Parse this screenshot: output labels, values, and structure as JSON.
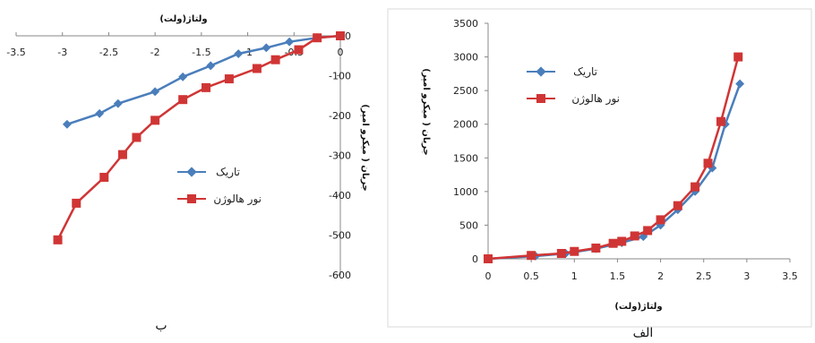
{
  "chart_data": [
    {
      "panel": "ب",
      "type": "line",
      "xlabel": "ولتاژ(ولت)",
      "ylabel": "جریان ( میکرو امپر)",
      "xlim": [
        -3.5,
        0
      ],
      "ylim": [
        -600,
        0
      ],
      "xticks": [
        -3.5,
        -3,
        -2.5,
        -2,
        -1.5,
        -1,
        -0.5,
        0
      ],
      "yticks": [
        -600,
        -500,
        -400,
        -300,
        -200,
        -100,
        0
      ],
      "xtick_labels": [
        "-3.5",
        "-3",
        "-2.5",
        "-2",
        "-1.5",
        "-1",
        "-0.5",
        "0"
      ],
      "ytick_labels": [
        "-600",
        "-500",
        "-400",
        "-300",
        "-200",
        "-100",
        "0"
      ],
      "legend_position": "bottom-center",
      "grid": false,
      "series": [
        {
          "name": "تاریک",
          "color": "#4a7ebb",
          "marker": "diamond",
          "x": [
            -2.95,
            -2.6,
            -2.4,
            -2.0,
            -1.7,
            -1.4,
            -1.1,
            -0.8,
            -0.55,
            -0.25,
            0.0
          ],
          "y": [
            -222,
            -195,
            -170,
            -140,
            -103,
            -75,
            -45,
            -30,
            -15,
            -5,
            0
          ]
        },
        {
          "name": "نور هالوژن",
          "color": "#d03535",
          "marker": "square",
          "x": [
            -3.05,
            -2.85,
            -2.55,
            -2.35,
            -2.2,
            -2.0,
            -1.7,
            -1.45,
            -1.2,
            -0.9,
            -0.7,
            -0.45,
            -0.25,
            0.0
          ],
          "y": [
            -512,
            -420,
            -355,
            -298,
            -255,
            -212,
            -160,
            -130,
            -108,
            -82,
            -60,
            -35,
            -5,
            0
          ]
        }
      ]
    },
    {
      "panel": "الف",
      "type": "line",
      "xlabel": "ولتاژ(ولت)",
      "ylabel": "جریان ( میکرو امپر)",
      "xlim": [
        0,
        3.5
      ],
      "ylim": [
        0,
        3500
      ],
      "xticks": [
        0,
        0.5,
        1,
        1.5,
        2,
        2.5,
        3,
        3.5
      ],
      "yticks": [
        0,
        500,
        1000,
        1500,
        2000,
        2500,
        3000,
        3500
      ],
      "xtick_labels": [
        "0",
        "0.5",
        "1",
        "1.5",
        "2",
        "2.5",
        "3",
        "3.5"
      ],
      "ytick_labels": [
        "0",
        "500",
        "1000",
        "1500",
        "2000",
        "2500",
        "3000",
        "3500"
      ],
      "legend_position": "top-left",
      "grid": false,
      "series": [
        {
          "name": "تاریک",
          "color": "#4a7ebb",
          "marker": "diamond",
          "x": [
            0.0,
            0.55,
            0.9,
            1.25,
            1.55,
            1.8,
            2.0,
            2.2,
            2.4,
            2.6,
            2.75,
            2.92
          ],
          "y": [
            0,
            40,
            80,
            150,
            240,
            330,
            500,
            730,
            1000,
            1350,
            2000,
            2600
          ]
        },
        {
          "name": "نور هالوژن",
          "color": "#d03535",
          "marker": "square",
          "x": [
            0.0,
            0.5,
            0.85,
            1.0,
            1.25,
            1.45,
            1.55,
            1.7,
            1.85,
            2.0,
            2.2,
            2.4,
            2.55,
            2.7,
            2.9
          ],
          "y": [
            0,
            50,
            80,
            110,
            160,
            230,
            260,
            340,
            420,
            580,
            790,
            1070,
            1420,
            2040,
            3000
          ]
        }
      ]
    }
  ]
}
